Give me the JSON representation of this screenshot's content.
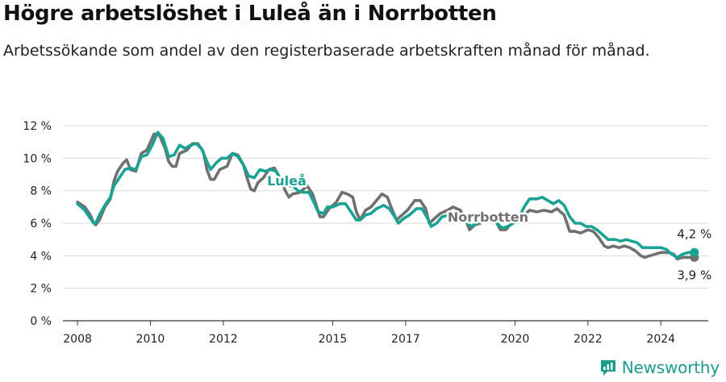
{
  "header": {
    "title": "Högre arbetslöshet i Luleå än i Norrbotten",
    "subtitle": "Arbetssökande som andel av den registerbaserade arbetskraften månad för månad."
  },
  "brand": {
    "name": "Newsworthy",
    "icon": "newsworthy-logo-icon"
  },
  "colors": {
    "lulea": "#1aa394",
    "norrbotten": "#707070",
    "grid": "#d9d9d9",
    "axis": "#333333"
  },
  "chart_data": {
    "type": "line",
    "title": "Högre arbetslöshet i Luleå än i Norrbotten",
    "subtitle": "Arbetssökande som andel av den registerbaserade arbetskraften månad för månad.",
    "xlabel": "",
    "ylabel": "",
    "xlim": [
      2007.6,
      2025.3
    ],
    "ylim": [
      0,
      12
    ],
    "x_ticks": [
      2008,
      2010,
      2012,
      2015,
      2017,
      2020,
      2022,
      2024
    ],
    "y_ticks": [
      0,
      2,
      4,
      6,
      8,
      10,
      12
    ],
    "y_tick_labels": [
      "0 %",
      "2 %",
      "4 %",
      "6 %",
      "8 %",
      "10 %",
      "12 %"
    ],
    "grid": "horizontal",
    "series": [
      {
        "name": "Norrbotten",
        "label": "Norrbotten",
        "end_label": "3,9 %",
        "color": "#707070",
        "points": [
          [
            2008.0,
            7.3
          ],
          [
            2008.2,
            7.0
          ],
          [
            2008.35,
            6.5
          ],
          [
            2008.45,
            6.0
          ],
          [
            2008.5,
            5.9
          ],
          [
            2008.6,
            6.2
          ],
          [
            2008.75,
            7.0
          ],
          [
            2008.9,
            7.5
          ],
          [
            2009.0,
            8.6
          ],
          [
            2009.1,
            9.2
          ],
          [
            2009.25,
            9.7
          ],
          [
            2009.35,
            9.9
          ],
          [
            2009.45,
            9.3
          ],
          [
            2009.6,
            9.2
          ],
          [
            2009.75,
            10.3
          ],
          [
            2009.9,
            10.5
          ],
          [
            2010.0,
            11.0
          ],
          [
            2010.1,
            11.5
          ],
          [
            2010.25,
            11.4
          ],
          [
            2010.4,
            10.6
          ],
          [
            2010.5,
            9.8
          ],
          [
            2010.6,
            9.5
          ],
          [
            2010.7,
            9.5
          ],
          [
            2010.8,
            10.3
          ],
          [
            2011.0,
            10.5
          ],
          [
            2011.15,
            10.9
          ],
          [
            2011.3,
            10.9
          ],
          [
            2011.45,
            10.4
          ],
          [
            2011.55,
            9.3
          ],
          [
            2011.65,
            8.7
          ],
          [
            2011.75,
            8.7
          ],
          [
            2011.9,
            9.3
          ],
          [
            2012.1,
            9.5
          ],
          [
            2012.25,
            10.3
          ],
          [
            2012.4,
            10.2
          ],
          [
            2012.55,
            9.6
          ],
          [
            2012.65,
            8.8
          ],
          [
            2012.75,
            8.1
          ],
          [
            2012.85,
            8.0
          ],
          [
            2012.95,
            8.5
          ],
          [
            2013.1,
            8.8
          ],
          [
            2013.25,
            9.3
          ],
          [
            2013.4,
            9.4
          ],
          [
            2013.55,
            8.8
          ],
          [
            2013.7,
            8.0
          ],
          [
            2013.8,
            7.6
          ],
          [
            2013.9,
            7.8
          ],
          [
            2014.1,
            7.9
          ],
          [
            2014.3,
            8.3
          ],
          [
            2014.45,
            7.8
          ],
          [
            2014.55,
            7.1
          ],
          [
            2014.65,
            6.4
          ],
          [
            2014.75,
            6.4
          ],
          [
            2014.9,
            6.9
          ],
          [
            2015.1,
            7.3
          ],
          [
            2015.25,
            7.9
          ],
          [
            2015.4,
            7.8
          ],
          [
            2015.55,
            7.6
          ],
          [
            2015.65,
            6.7
          ],
          [
            2015.75,
            6.2
          ],
          [
            2015.9,
            6.8
          ],
          [
            2016.05,
            7.0
          ],
          [
            2016.2,
            7.4
          ],
          [
            2016.35,
            7.8
          ],
          [
            2016.5,
            7.6
          ],
          [
            2016.6,
            7.0
          ],
          [
            2016.75,
            6.2
          ],
          [
            2016.9,
            6.5
          ],
          [
            2017.05,
            6.8
          ],
          [
            2017.25,
            7.4
          ],
          [
            2017.4,
            7.4
          ],
          [
            2017.55,
            6.9
          ],
          [
            2017.65,
            6.0
          ],
          [
            2017.8,
            6.3
          ],
          [
            2017.95,
            6.6
          ],
          [
            2018.15,
            6.8
          ],
          [
            2018.3,
            7.0
          ],
          [
            2018.5,
            6.8
          ],
          [
            2018.65,
            6.2
          ],
          [
            2018.75,
            5.6
          ],
          [
            2018.9,
            5.9
          ],
          [
            2019.05,
            6.0
          ],
          [
            2019.2,
            6.4
          ],
          [
            2019.35,
            6.3
          ],
          [
            2019.5,
            6.0
          ],
          [
            2019.6,
            5.6
          ],
          [
            2019.75,
            5.6
          ],
          [
            2019.9,
            6.0
          ],
          [
            2020.1,
            6.1
          ],
          [
            2020.25,
            6.5
          ],
          [
            2020.4,
            6.8
          ],
          [
            2020.6,
            6.7
          ],
          [
            2020.8,
            6.8
          ],
          [
            2021.0,
            6.7
          ],
          [
            2021.15,
            6.9
          ],
          [
            2021.35,
            6.5
          ],
          [
            2021.5,
            5.5
          ],
          [
            2021.65,
            5.5
          ],
          [
            2021.8,
            5.4
          ],
          [
            2022.0,
            5.6
          ],
          [
            2022.15,
            5.5
          ],
          [
            2022.3,
            5.1
          ],
          [
            2022.45,
            4.6
          ],
          [
            2022.55,
            4.5
          ],
          [
            2022.7,
            4.6
          ],
          [
            2022.85,
            4.5
          ],
          [
            2023.0,
            4.6
          ],
          [
            2023.15,
            4.5
          ],
          [
            2023.3,
            4.3
          ],
          [
            2023.45,
            4.0
          ],
          [
            2023.55,
            3.9
          ],
          [
            2023.7,
            4.0
          ],
          [
            2023.85,
            4.1
          ],
          [
            2024.0,
            4.2
          ],
          [
            2024.2,
            4.2
          ],
          [
            2024.35,
            4.1
          ],
          [
            2024.45,
            3.8
          ],
          [
            2024.6,
            3.9
          ],
          [
            2024.75,
            3.9
          ],
          [
            2024.92,
            3.9
          ]
        ]
      },
      {
        "name": "Luleå",
        "label": "Luleå",
        "end_label": "4,2 %",
        "color": "#1aa394",
        "points": [
          [
            2008.0,
            7.2
          ],
          [
            2008.2,
            6.8
          ],
          [
            2008.35,
            6.3
          ],
          [
            2008.45,
            6.0
          ],
          [
            2008.5,
            6.0
          ],
          [
            2008.6,
            6.5
          ],
          [
            2008.75,
            7.1
          ],
          [
            2008.9,
            7.6
          ],
          [
            2009.0,
            8.3
          ],
          [
            2009.15,
            8.8
          ],
          [
            2009.3,
            9.3
          ],
          [
            2009.45,
            9.4
          ],
          [
            2009.6,
            9.3
          ],
          [
            2009.75,
            10.1
          ],
          [
            2009.9,
            10.2
          ],
          [
            2010.05,
            10.8
          ],
          [
            2010.2,
            11.6
          ],
          [
            2010.35,
            11.2
          ],
          [
            2010.5,
            10.1
          ],
          [
            2010.65,
            10.2
          ],
          [
            2010.8,
            10.8
          ],
          [
            2010.95,
            10.6
          ],
          [
            2011.1,
            10.8
          ],
          [
            2011.25,
            10.9
          ],
          [
            2011.4,
            10.6
          ],
          [
            2011.55,
            9.8
          ],
          [
            2011.65,
            9.3
          ],
          [
            2011.8,
            9.7
          ],
          [
            2011.95,
            10.0
          ],
          [
            2012.1,
            10.0
          ],
          [
            2012.25,
            10.3
          ],
          [
            2012.4,
            10.1
          ],
          [
            2012.55,
            9.6
          ],
          [
            2012.7,
            8.9
          ],
          [
            2012.85,
            8.8
          ],
          [
            2013.0,
            9.3
          ],
          [
            2013.15,
            9.2
          ],
          [
            2013.3,
            9.3
          ],
          [
            2013.45,
            9.2
          ],
          [
            2013.6,
            8.6
          ],
          [
            2013.75,
            8.3
          ],
          [
            2013.9,
            8.3
          ],
          [
            2014.05,
            8.0
          ],
          [
            2014.2,
            7.9
          ],
          [
            2014.35,
            7.9
          ],
          [
            2014.5,
            7.2
          ],
          [
            2014.6,
            6.7
          ],
          [
            2014.75,
            6.6
          ],
          [
            2014.85,
            7.0
          ],
          [
            2015.0,
            7.0
          ],
          [
            2015.2,
            7.2
          ],
          [
            2015.35,
            7.2
          ],
          [
            2015.5,
            6.7
          ],
          [
            2015.65,
            6.2
          ],
          [
            2015.75,
            6.2
          ],
          [
            2015.9,
            6.5
          ],
          [
            2016.05,
            6.6
          ],
          [
            2016.2,
            6.9
          ],
          [
            2016.4,
            7.1
          ],
          [
            2016.55,
            6.9
          ],
          [
            2016.7,
            6.4
          ],
          [
            2016.8,
            6.0
          ],
          [
            2016.95,
            6.3
          ],
          [
            2017.1,
            6.5
          ],
          [
            2017.3,
            6.9
          ],
          [
            2017.45,
            6.9
          ],
          [
            2017.6,
            6.3
          ],
          [
            2017.7,
            5.8
          ],
          [
            2017.85,
            6.0
          ],
          [
            2018.0,
            6.4
          ],
          [
            2018.2,
            6.5
          ],
          [
            2018.4,
            6.6
          ],
          [
            2018.55,
            6.5
          ],
          [
            2018.7,
            6.0
          ],
          [
            2018.8,
            5.8
          ],
          [
            2018.95,
            6.0
          ],
          [
            2019.15,
            6.2
          ],
          [
            2019.35,
            6.3
          ],
          [
            2019.5,
            6.0
          ],
          [
            2019.65,
            5.7
          ],
          [
            2019.8,
            5.8
          ],
          [
            2019.95,
            6.0
          ],
          [
            2020.1,
            6.3
          ],
          [
            2020.25,
            7.0
          ],
          [
            2020.4,
            7.5
          ],
          [
            2020.6,
            7.5
          ],
          [
            2020.75,
            7.6
          ],
          [
            2020.9,
            7.4
          ],
          [
            2021.05,
            7.2
          ],
          [
            2021.2,
            7.4
          ],
          [
            2021.35,
            7.1
          ],
          [
            2021.5,
            6.4
          ],
          [
            2021.65,
            6.0
          ],
          [
            2021.8,
            6.0
          ],
          [
            2021.95,
            5.8
          ],
          [
            2022.1,
            5.8
          ],
          [
            2022.25,
            5.6
          ],
          [
            2022.4,
            5.3
          ],
          [
            2022.55,
            5.0
          ],
          [
            2022.75,
            5.0
          ],
          [
            2022.9,
            4.9
          ],
          [
            2023.05,
            5.0
          ],
          [
            2023.2,
            4.9
          ],
          [
            2023.35,
            4.8
          ],
          [
            2023.5,
            4.5
          ],
          [
            2023.65,
            4.5
          ],
          [
            2023.85,
            4.5
          ],
          [
            2024.0,
            4.5
          ],
          [
            2024.15,
            4.4
          ],
          [
            2024.3,
            4.1
          ],
          [
            2024.45,
            3.9
          ],
          [
            2024.6,
            4.1
          ],
          [
            2024.75,
            4.2
          ],
          [
            2024.92,
            4.2
          ]
        ]
      }
    ]
  }
}
